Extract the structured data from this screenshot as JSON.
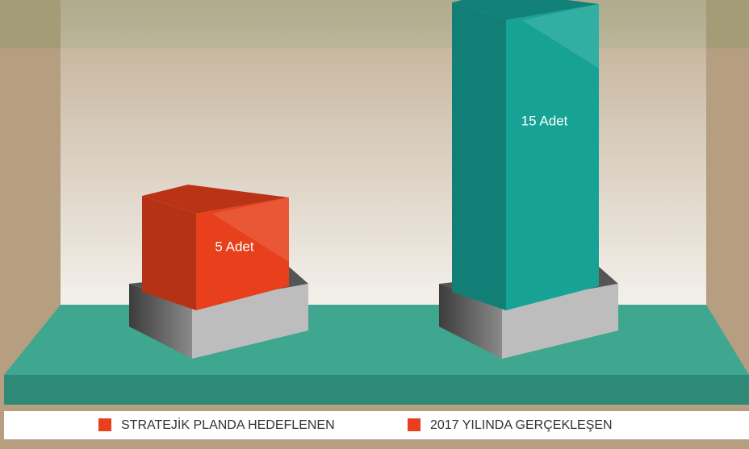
{
  "chart_data": {
    "type": "bar3d",
    "series": [
      {
        "name": "STRATEJİK PLANDA HEDEFLENEN",
        "color": "#e8401c",
        "legend_color": "#e8401c",
        "values": [
          5
        ],
        "value_labels": [
          "5 Adet"
        ]
      },
      {
        "name": "2017 YILINDA GERÇEKLEŞEN",
        "color": "#16a396",
        "legend_color": "#e8401c",
        "values": [
          15
        ],
        "value_labels": [
          "15 Adet"
        ]
      }
    ]
  }
}
